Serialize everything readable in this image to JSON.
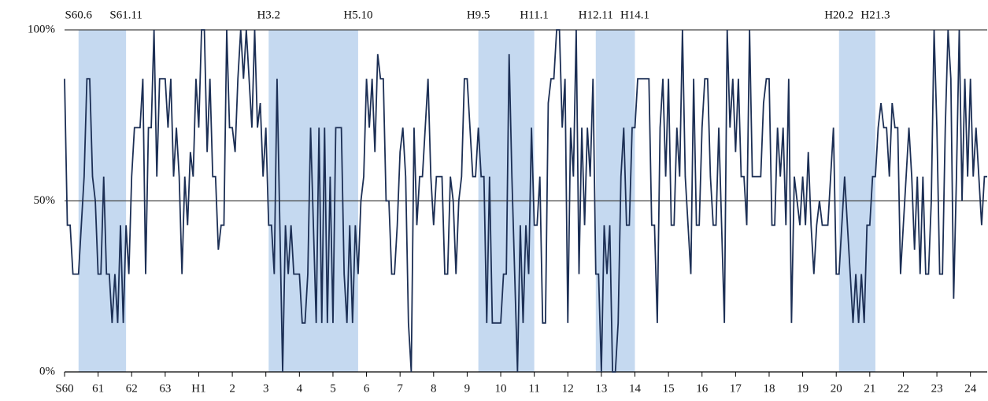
{
  "chart_data": {
    "type": "line",
    "values": [
      85.7,
      42.9,
      42.9,
      28.6,
      28.6,
      28.6,
      42.9,
      57.1,
      85.7,
      85.7,
      57.1,
      50,
      28.6,
      28.6,
      57.1,
      28.6,
      28.6,
      14.3,
      28.6,
      14.3,
      42.9,
      14.3,
      42.9,
      28.6,
      57.1,
      71.4,
      71.4,
      71.4,
      85.7,
      28.6,
      71.4,
      71.4,
      100,
      57.1,
      85.7,
      85.7,
      85.7,
      71.4,
      85.7,
      57.1,
      71.4,
      57.1,
      28.6,
      57.1,
      42.9,
      64.3,
      57.1,
      85.7,
      71.4,
      100,
      100,
      64.3,
      85.7,
      57.1,
      57.1,
      35.7,
      42.9,
      42.9,
      100,
      71.4,
      71.4,
      64.3,
      85.7,
      100,
      85.7,
      100,
      85.7,
      71.4,
      100,
      71.4,
      78.6,
      57.1,
      71.4,
      42.9,
      42.9,
      28.6,
      85.7,
      42.9,
      0,
      42.9,
      28.6,
      42.9,
      28.6,
      28.6,
      28.6,
      14.3,
      14.3,
      28.6,
      71.4,
      42.9,
      14.3,
      71.4,
      14.3,
      71.4,
      14.3,
      57.1,
      14.3,
      71.4,
      71.4,
      71.4,
      28.6,
      14.3,
      42.9,
      14.3,
      42.9,
      28.6,
      50,
      57.1,
      85.7,
      71.4,
      85.7,
      64.3,
      92.9,
      85.7,
      85.7,
      50,
      50,
      28.6,
      28.6,
      42.9,
      64.3,
      71.4,
      57.1,
      14.3,
      0,
      71.4,
      42.9,
      57.1,
      57.1,
      71.4,
      85.7,
      57.1,
      42.9,
      57.1,
      57.1,
      57.1,
      28.6,
      28.6,
      57.1,
      50,
      28.6,
      50,
      57.1,
      85.7,
      85.7,
      71.4,
      57.1,
      57.1,
      71.4,
      57.1,
      57.1,
      14.3,
      57.1,
      14.3,
      14.3,
      14.3,
      14.3,
      28.6,
      28.6,
      92.9,
      57.1,
      28.6,
      0,
      42.9,
      14.3,
      42.9,
      28.6,
      71.4,
      42.9,
      42.9,
      57.1,
      14.3,
      14.3,
      78.6,
      85.7,
      85.7,
      100,
      100,
      71.4,
      85.7,
      14.3,
      71.4,
      57.1,
      100,
      28.6,
      71.4,
      42.9,
      71.4,
      57.1,
      85.7,
      28.6,
      28.6,
      0,
      42.9,
      28.6,
      42.9,
      0,
      0,
      14.3,
      57.1,
      71.4,
      42.9,
      42.9,
      71.4,
      71.4,
      85.7,
      85.7,
      85.7,
      85.7,
      85.7,
      42.9,
      42.9,
      14.3,
      71.4,
      85.7,
      57.1,
      85.7,
      42.9,
      42.9,
      71.4,
      57.1,
      100,
      57.1,
      42.9,
      28.6,
      85.7,
      42.9,
      42.9,
      71.4,
      85.7,
      85.7,
      57.1,
      42.9,
      42.9,
      71.4,
      42.9,
      14.3,
      100,
      71.4,
      85.7,
      64.3,
      85.7,
      57.1,
      57.1,
      42.9,
      100,
      57.1,
      57.1,
      57.1,
      57.1,
      78.6,
      85.7,
      85.7,
      42.9,
      42.9,
      71.4,
      57.1,
      71.4,
      42.9,
      85.7,
      14.3,
      57.1,
      50,
      42.9,
      57.1,
      42.9,
      64.3,
      42.9,
      28.6,
      42.9,
      50,
      42.9,
      42.9,
      42.9,
      57.1,
      71.4,
      28.6,
      28.6,
      42.9,
      57.1,
      42.9,
      28.6,
      14.3,
      28.6,
      14.3,
      28.6,
      14.3,
      42.9,
      42.9,
      57.1,
      57.1,
      71.4,
      78.6,
      71.4,
      71.4,
      57.1,
      78.6,
      71.4,
      71.4,
      28.6,
      42.9,
      57.1,
      71.4,
      57.1,
      35.7,
      57.1,
      28.6,
      57.1,
      28.6,
      28.6,
      50,
      100,
      71.4,
      28.6,
      28.6,
      71.4,
      100,
      85.7,
      21.4,
      57.1,
      100,
      50,
      85.7,
      57.1,
      85.7,
      57.1,
      71.4,
      57.1,
      42.9,
      57.1,
      57.1
    ],
    "color": "#1c2f55",
    "xlim": [
      0,
      330
    ],
    "xticks": [
      {
        "value": 0,
        "label": "S60"
      },
      {
        "value": 12,
        "label": "61"
      },
      {
        "value": 24,
        "label": "62"
      },
      {
        "value": 36,
        "label": "63"
      },
      {
        "value": 48,
        "label": "H1"
      },
      {
        "value": 60,
        "label": "2"
      },
      {
        "value": 72,
        "label": "3"
      },
      {
        "value": 84,
        "label": "4"
      },
      {
        "value": 96,
        "label": "5"
      },
      {
        "value": 108,
        "label": "6"
      },
      {
        "value": 120,
        "label": "7"
      },
      {
        "value": 132,
        "label": "8"
      },
      {
        "value": 144,
        "label": "9"
      },
      {
        "value": 156,
        "label": "10"
      },
      {
        "value": 168,
        "label": "11"
      },
      {
        "value": 180,
        "label": "12"
      },
      {
        "value": 192,
        "label": "13"
      },
      {
        "value": 204,
        "label": "14"
      },
      {
        "value": 216,
        "label": "15"
      },
      {
        "value": 228,
        "label": "16"
      },
      {
        "value": 240,
        "label": "17"
      },
      {
        "value": 252,
        "label": "18"
      },
      {
        "value": 264,
        "label": "19"
      },
      {
        "value": 276,
        "label": "20"
      },
      {
        "value": 288,
        "label": "21"
      },
      {
        "value": 300,
        "label": "22"
      },
      {
        "value": 312,
        "label": "23"
      },
      {
        "value": 324,
        "label": "24"
      }
    ],
    "ylim": [
      0,
      100
    ],
    "yticks": [
      {
        "value": 0,
        "label": "0%"
      },
      {
        "value": 50,
        "label": "50%"
      },
      {
        "value": 100,
        "label": "100%"
      }
    ],
    "grid": true,
    "band_color": "#c5d9f0",
    "recessions": [
      {
        "start": 5,
        "end": 22,
        "start_label": "S60.6",
        "end_label": "S61.11"
      },
      {
        "start": 73,
        "end": 105,
        "start_label": "H3.2",
        "end_label": "H5.10"
      },
      {
        "start": 148,
        "end": 168,
        "start_label": "H9.5",
        "end_label": "H11.1"
      },
      {
        "start": 190,
        "end": 204,
        "start_label": "H12.11",
        "end_label": "H14.1"
      },
      {
        "start": 277,
        "end": 290,
        "start_label": "H20.2",
        "end_label": "H21.3"
      }
    ]
  }
}
